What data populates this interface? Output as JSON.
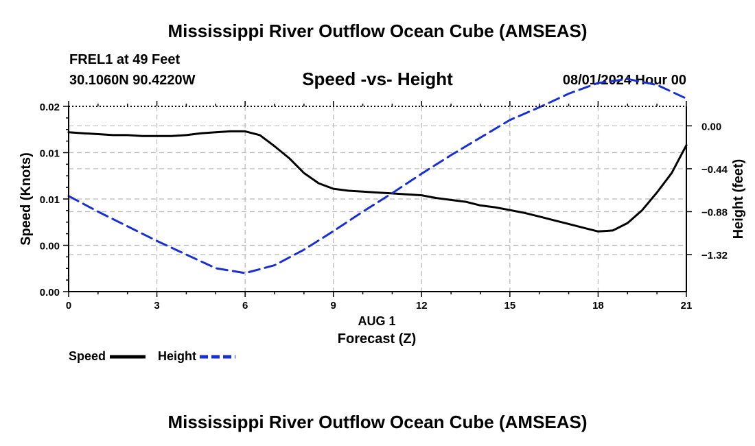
{
  "page": {
    "title": "Mississippi River Outflow Ocean Cube (AMSEAS)",
    "footer_title": "Mississippi River Outflow Ocean Cube (AMSEAS)",
    "station": "FREL1 at 49 Feet",
    "coords": "30.1060N  90.4220W",
    "subtitle": "Speed -vs- Height",
    "datetime": "08/01/2024 Hour 00"
  },
  "chart_data": {
    "type": "line",
    "title": "Speed -vs- Height",
    "xlabel": "Forecast (Z)",
    "date_label": "AUG 1",
    "ylabel_left": "Speed (Knots)",
    "ylabel_right": "Height (feet)",
    "xlim": [
      0,
      21
    ],
    "x_ticks": [
      0,
      3,
      6,
      9,
      12,
      15,
      18,
      21
    ],
    "x_tick_labels": [
      "0",
      "3",
      "6",
      "9",
      "12",
      "15",
      "18",
      "21"
    ],
    "ylim_left": [
      0,
      0.02
    ],
    "y_left_ticks": [
      0,
      0.005,
      0.01,
      0.015,
      0.02
    ],
    "y_left_tick_labels": [
      "0.00",
      "0.00",
      "0.01",
      "0.01",
      "0.02"
    ],
    "ylim_right": [
      -1.7,
      0.2
    ],
    "y_right_ticks": [
      0,
      -0.44,
      -0.88,
      -1.32
    ],
    "y_right_tick_labels": [
      "0.00",
      "−0.44",
      "−0.88",
      "−1.32"
    ],
    "grid": true,
    "series": [
      {
        "name": "Speed",
        "axis": "left",
        "style": "solid",
        "color": "#000000",
        "x": [
          0,
          0.5,
          1,
          1.5,
          2,
          2.5,
          3,
          3.5,
          4,
          4.5,
          5,
          5.5,
          6,
          6.5,
          7,
          7.5,
          8,
          8.5,
          9,
          9.5,
          10,
          10.5,
          11,
          11.5,
          12,
          12.5,
          13,
          13.5,
          14,
          14.5,
          15,
          15.5,
          16,
          16.5,
          17,
          17.5,
          18,
          18.5,
          19,
          19.5,
          20,
          20.5,
          21
        ],
        "values": [
          0.0172,
          0.0171,
          0.017,
          0.0169,
          0.0169,
          0.0168,
          0.0168,
          0.0168,
          0.0169,
          0.0171,
          0.0172,
          0.0173,
          0.0173,
          0.0169,
          0.0157,
          0.0144,
          0.0128,
          0.0117,
          0.0111,
          0.0109,
          0.0108,
          0.0107,
          0.0106,
          0.0105,
          0.0104,
          0.0101,
          0.0099,
          0.0097,
          0.0093,
          0.0091,
          0.0088,
          0.0085,
          0.0081,
          0.0077,
          0.0073,
          0.0069,
          0.0065,
          0.0066,
          0.0074,
          0.0088,
          0.0107,
          0.0128,
          0.0158
        ]
      },
      {
        "name": "Height",
        "axis": "right",
        "style": "dashed",
        "color": "#1a2fcc",
        "x": [
          0,
          1,
          2,
          3,
          4,
          5,
          6,
          7,
          8,
          9,
          10,
          11,
          12,
          13,
          14,
          15,
          16,
          17,
          18,
          19,
          20,
          21
        ],
        "values": [
          -0.72,
          -0.88,
          -1.03,
          -1.18,
          -1.32,
          -1.46,
          -1.51,
          -1.43,
          -1.27,
          -1.08,
          -0.88,
          -0.69,
          -0.49,
          -0.3,
          -0.12,
          0.06,
          0.19,
          0.33,
          0.44,
          0.48,
          0.42,
          0.28
        ]
      }
    ],
    "legend": [
      {
        "label": "Speed",
        "style": "solid",
        "color": "#000000"
      },
      {
        "label": "Height",
        "style": "dashed",
        "color": "#1a2fcc"
      }
    ]
  }
}
